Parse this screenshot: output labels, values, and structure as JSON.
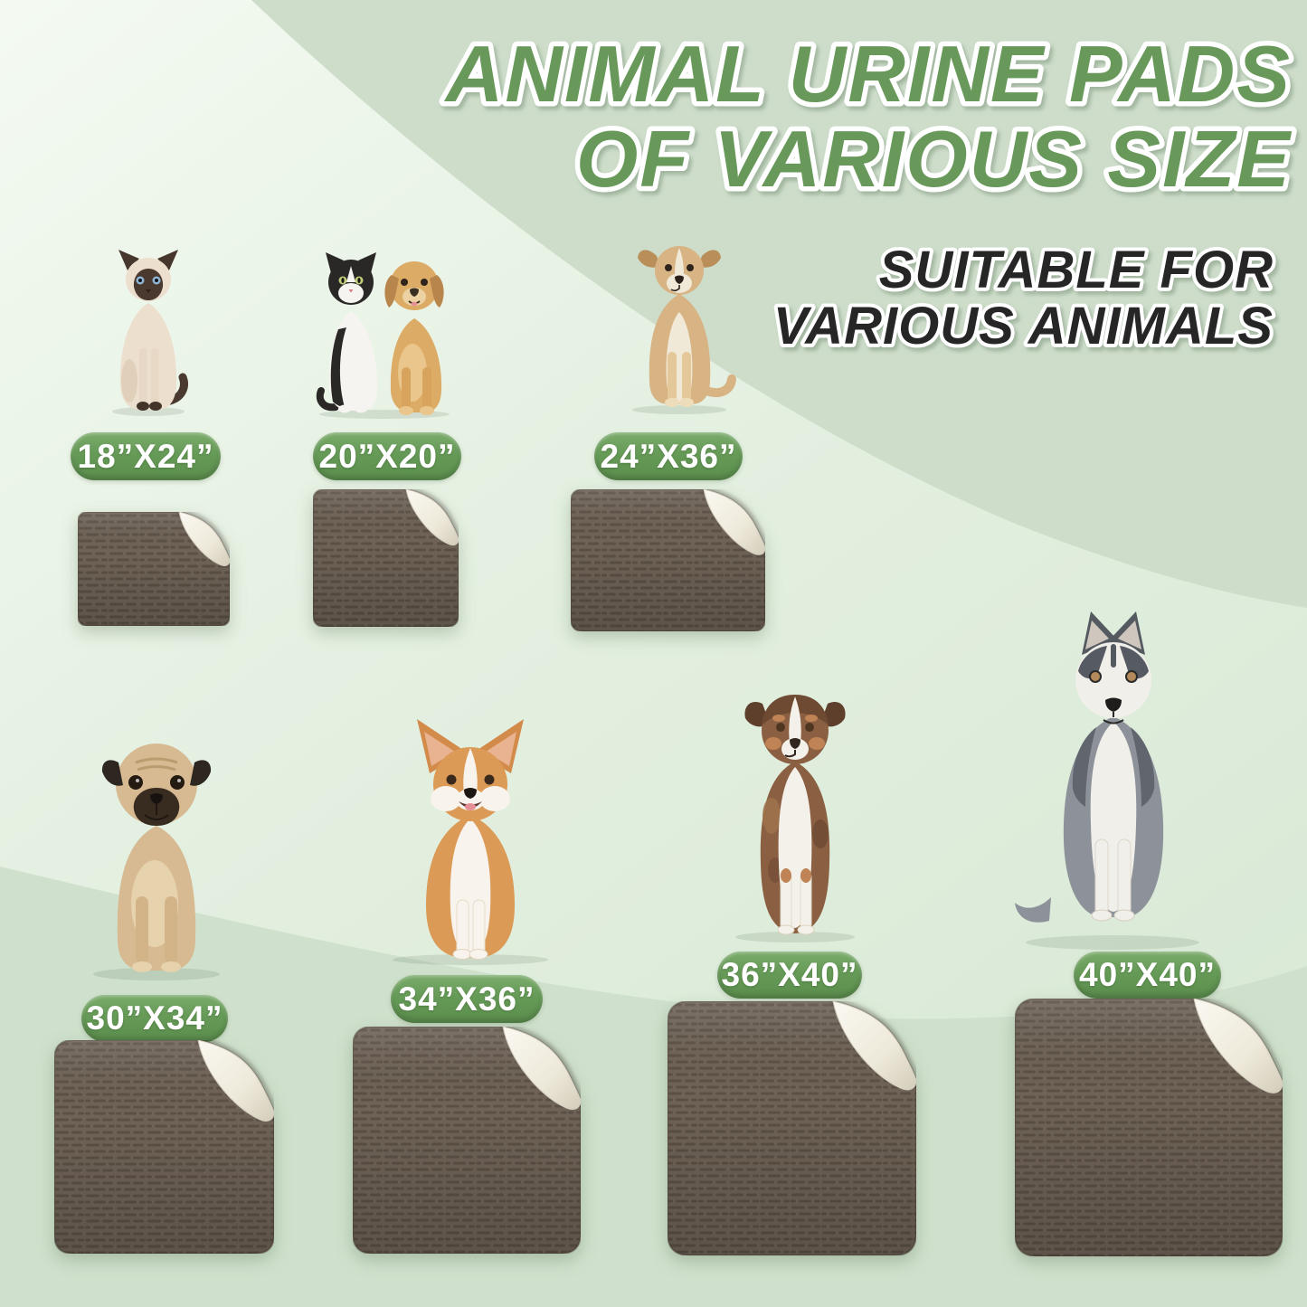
{
  "title": {
    "line1": "ANIMAL URINE PADS",
    "line2": "OF VARIOUS SIZE"
  },
  "subtitle": {
    "line1": "SUITABLE FOR",
    "line2": "VARIOUS ANIMALS"
  },
  "items": [
    {
      "size": "18”X24”",
      "animal": "siamese-cat"
    },
    {
      "size": "20”X20”",
      "animal": "cat-and-puppy"
    },
    {
      "size": "24”X36”",
      "animal": "tan-dog"
    },
    {
      "size": "30”X34”",
      "animal": "pug"
    },
    {
      "size": "34”X36”",
      "animal": "corgi"
    },
    {
      "size": "36”X40”",
      "animal": "australian-shepherd"
    },
    {
      "size": "40”X40”",
      "animal": "husky"
    }
  ],
  "colors": {
    "title_green": "#68995a",
    "subtitle_dark": "#282828",
    "badge_green": "#669a57",
    "background_mint": "#e2efdf",
    "background_sage": "#cdddca",
    "pad_brown": "#6f6357",
    "pad_texture_dark": "#5b5045",
    "pad_underside": "#f2efe6"
  }
}
